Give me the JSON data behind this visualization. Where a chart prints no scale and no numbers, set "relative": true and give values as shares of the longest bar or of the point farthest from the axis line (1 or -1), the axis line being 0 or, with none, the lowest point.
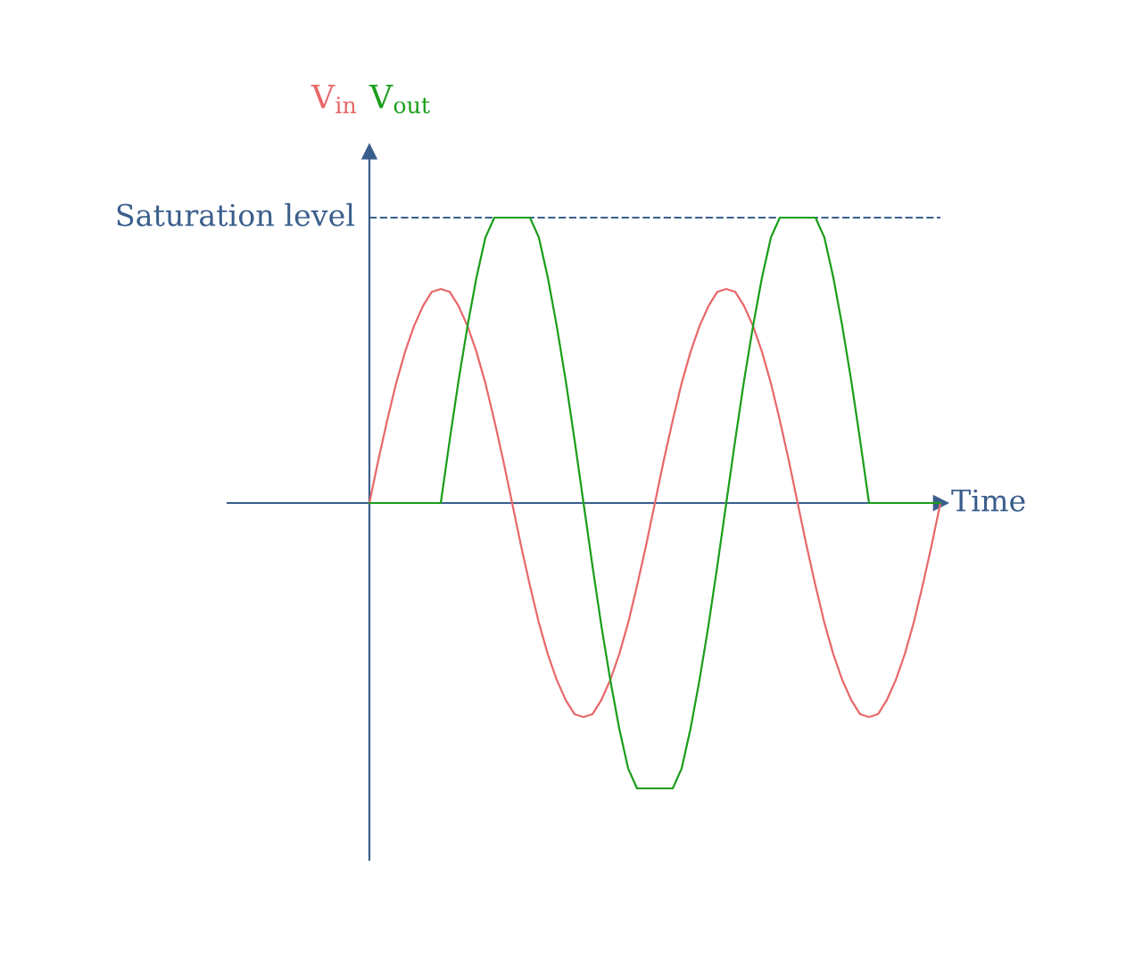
{
  "chart_data": {
    "type": "line",
    "relative": true,
    "xlabel": "Time",
    "legend": false,
    "line_style": "solid",
    "marker": "none",
    "categories": [
      null,
      null,
      null,
      null,
      null,
      null,
      null,
      null,
      null,
      null,
      null,
      null,
      null,
      null,
      null,
      null,
      null,
      null,
      null,
      null,
      null,
      null,
      null,
      null,
      null,
      null,
      null,
      null,
      null,
      null,
      null,
      null,
      null,
      null,
      null,
      null,
      null,
      null,
      null,
      null,
      null,
      null,
      null,
      null,
      null,
      null,
      null,
      null,
      null,
      null,
      null,
      null,
      null,
      null,
      null,
      null,
      null,
      null,
      null,
      null,
      null,
      null,
      null,
      null,
      null
    ],
    "series": [
      {
        "name": "V$_{in}$",
        "color": "#e8686a",
        "values": [
          0,
          0.15,
          0.29,
          0.42,
          0.53,
          0.62,
          0.69,
          0.74,
          0.75,
          0.74,
          0.69,
          0.62,
          0.53,
          0.42,
          0.29,
          0.15,
          0,
          -0.15,
          -0.29,
          -0.42,
          -0.53,
          -0.62,
          -0.69,
          -0.74,
          -0.75,
          -0.74,
          -0.69,
          -0.62,
          -0.53,
          -0.42,
          -0.29,
          -0.15,
          0,
          0.15,
          0.29,
          0.42,
          0.53,
          0.62,
          0.69,
          0.74,
          0.75,
          0.74,
          0.69,
          0.62,
          0.53,
          0.42,
          0.29,
          0.15,
          0,
          -0.15,
          -0.29,
          -0.42,
          -0.53,
          -0.62,
          -0.69,
          -0.74,
          -0.75,
          -0.74,
          -0.69,
          -0.62,
          -0.53,
          -0.42,
          -0.29,
          -0.15,
          0
        ]
      },
      {
        "name": "V$_{out}$",
        "color": "#1a9e1a",
        "values": [
          0,
          0,
          0,
          0,
          0,
          0,
          0,
          0,
          0,
          0.22,
          0.43,
          0.62,
          0.79,
          0.93,
          1,
          1,
          1,
          1,
          1,
          0.93,
          0.79,
          0.62,
          0.43,
          0.22,
          0,
          -0.22,
          -0.43,
          -0.62,
          -0.79,
          -0.93,
          -1,
          -1,
          -1,
          -1,
          -1,
          -0.93,
          -0.79,
          -0.62,
          -0.43,
          -0.22,
          0,
          0.22,
          0.43,
          0.62,
          0.79,
          0.93,
          1,
          1,
          1,
          1,
          1,
          0.93,
          0.79,
          0.62,
          0.43,
          0.22,
          0,
          0,
          0,
          0,
          0,
          0,
          0,
          0,
          0
        ]
      }
    ],
    "ref_lines": [
      {
        "axis": "y",
        "value": 0,
        "color": "#3a5e8c",
        "line_style": "solid"
      },
      {
        "axis": "y",
        "value": 1,
        "label": "Saturation level",
        "color": "#3a5e8c",
        "line_style": "dashed"
      }
    ]
  }
}
